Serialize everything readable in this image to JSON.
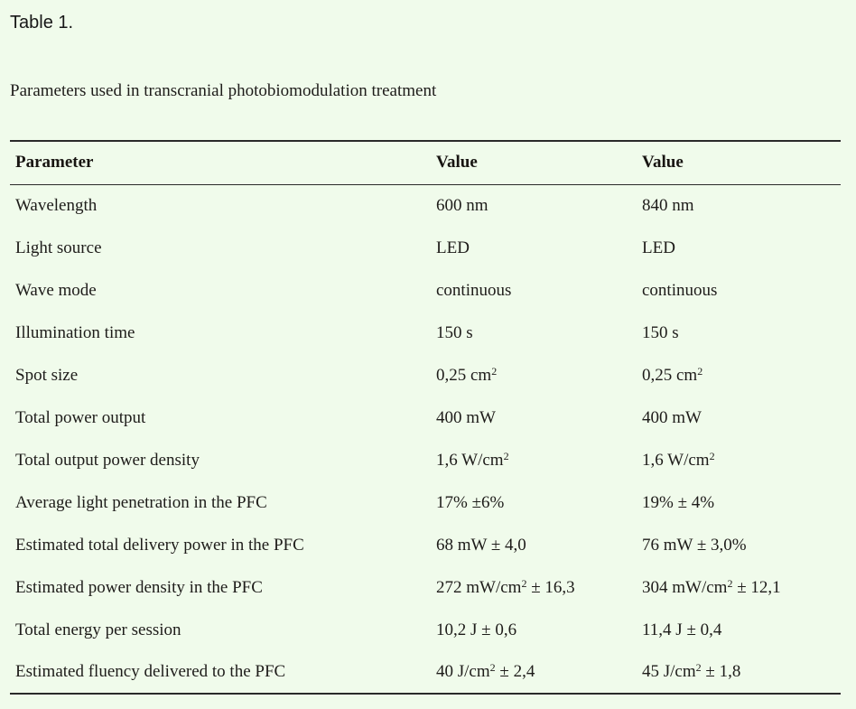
{
  "page": {
    "label": "Table 1.",
    "caption": "Parameters used in transcranial photobiomodulation treatment",
    "background_color": "#f0fbeb",
    "text_color": "#1e1c1a",
    "rule_color": "#2a2a2a"
  },
  "table": {
    "headers": [
      "Parameter",
      "Value",
      "Value"
    ],
    "rows": [
      {
        "param": "Wavelength",
        "v1": {
          "pre": "600 nm",
          "sup": "",
          "post": ""
        },
        "v2": {
          "pre": "840 nm",
          "sup": "",
          "post": ""
        }
      },
      {
        "param": "Light source",
        "v1": {
          "pre": "LED",
          "sup": "",
          "post": ""
        },
        "v2": {
          "pre": "LED",
          "sup": "",
          "post": ""
        }
      },
      {
        "param": "Wave mode",
        "v1": {
          "pre": "continuous",
          "sup": "",
          "post": ""
        },
        "v2": {
          "pre": "continuous",
          "sup": "",
          "post": ""
        }
      },
      {
        "param": "Illumination time",
        "v1": {
          "pre": "150 s",
          "sup": "",
          "post": ""
        },
        "v2": {
          "pre": "150 s",
          "sup": "",
          "post": ""
        }
      },
      {
        "param": "Spot size",
        "v1": {
          "pre": "0,25 cm",
          "sup": "2",
          "post": ""
        },
        "v2": {
          "pre": "0,25 cm",
          "sup": "2",
          "post": ""
        }
      },
      {
        "param": "Total power output",
        "v1": {
          "pre": "400 mW",
          "sup": "",
          "post": ""
        },
        "v2": {
          "pre": "400 mW",
          "sup": "",
          "post": ""
        }
      },
      {
        "param": "Total output power density",
        "v1": {
          "pre": "1,6 W/cm",
          "sup": "2",
          "post": ""
        },
        "v2": {
          "pre": "1,6 W/cm",
          "sup": "2",
          "post": ""
        }
      },
      {
        "param": "Average light penetration in the PFC",
        "v1": {
          "pre": "17% ±6%",
          "sup": "",
          "post": ""
        },
        "v2": {
          "pre": "19% ± 4%",
          "sup": "",
          "post": ""
        }
      },
      {
        "param": "Estimated total delivery power in the PFC",
        "v1": {
          "pre": "68 mW ± 4,0",
          "sup": "",
          "post": ""
        },
        "v2": {
          "pre": "76 mW ± 3,0%",
          "sup": "",
          "post": ""
        }
      },
      {
        "param": "Estimated power density in the PFC",
        "v1": {
          "pre": "272 mW/cm",
          "sup": "2",
          "post": " ± 16,3"
        },
        "v2": {
          "pre": "304 mW/cm",
          "sup": "2",
          "post": " ± 12,1"
        }
      },
      {
        "param": "Total energy per session",
        "v1": {
          "pre": "10,2 J ± 0,6",
          "sup": "",
          "post": ""
        },
        "v2": {
          "pre": "11,4 J ± 0,4",
          "sup": "",
          "post": ""
        }
      },
      {
        "param": "Estimated fluency delivered to the PFC",
        "v1": {
          "pre": "40 J/cm",
          "sup": "2",
          "post": " ± 2,4"
        },
        "v2": {
          "pre": "45 J/cm",
          "sup": "2",
          "post": " ± 1,8"
        }
      }
    ]
  }
}
